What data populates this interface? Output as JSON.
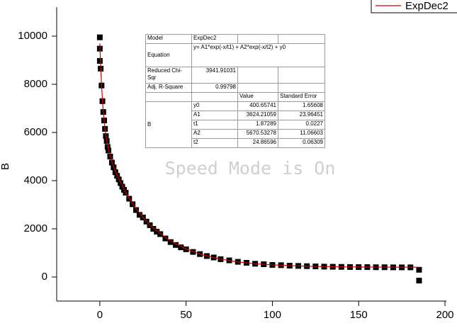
{
  "chart_data": {
    "type": "scatter",
    "ylabel": "B",
    "xlim": [
      -25,
      200
    ],
    "xticks": [
      0,
      50,
      100,
      150,
      200
    ],
    "ylim": [
      -1000,
      11000
    ],
    "yticks": [
      0,
      2000,
      4000,
      6000,
      8000,
      10000
    ],
    "series": [
      {
        "color": "#000000",
        "marker": "square",
        "x": [
          0,
          0,
          0,
          0.5,
          1,
          1.5,
          2,
          2.5,
          3,
          3.5,
          4,
          4.5,
          5,
          6,
          7,
          8,
          9,
          10,
          11,
          12,
          13,
          14,
          15,
          17,
          19,
          21,
          23,
          25,
          27,
          29,
          31,
          33,
          35,
          38,
          41,
          44,
          47,
          50,
          54,
          58,
          62,
          66,
          70,
          75,
          80,
          85,
          90,
          95,
          100,
          105,
          110,
          115,
          120,
          125,
          130,
          135,
          140,
          145,
          150,
          155,
          160,
          165,
          170,
          175,
          180,
          185,
          185
        ],
        "values": [
          9950,
          9480,
          8970,
          8650,
          7950,
          7300,
          6850,
          6500,
          6150,
          5850,
          5650,
          5400,
          5250,
          5000,
          4750,
          4550,
          4350,
          4200,
          4050,
          3900,
          3750,
          3620,
          3500,
          3250,
          3020,
          2780,
          2580,
          2470,
          2300,
          2150,
          2000,
          1880,
          1780,
          1600,
          1450,
          1330,
          1230,
          1150,
          1040,
          950,
          870,
          810,
          740,
          690,
          630,
          590,
          550,
          530,
          500,
          490,
          470,
          460,
          450,
          440,
          430,
          425,
          420,
          415,
          410,
          410,
          405,
          405,
          400,
          400,
          400,
          300,
          -150
        ]
      },
      {
        "name": "ExpDec2",
        "color": "#cc0000",
        "marker": "line",
        "x": [
          0,
          0.5,
          1,
          1.5,
          2,
          3,
          4,
          5,
          7,
          10,
          15,
          20,
          25,
          30,
          40,
          50,
          60,
          70,
          80,
          90,
          100,
          120,
          140,
          160,
          185
        ],
        "values": [
          9695,
          8733,
          7973,
          7366,
          6880,
          6158,
          5657,
          5288,
          4766,
          4211,
          3503,
          2938,
          2476,
          2098,
          1536,
          1160,
          908,
          740,
          628,
          553,
          502,
          447,
          421,
          410,
          404
        ]
      }
    ],
    "legend": "top-right",
    "watermark": "Speed Mode is On",
    "fit_table": {
      "summary": [
        [
          "Model",
          "ExpDec2"
        ],
        [
          "Equation",
          "y= A1*exp(-x/t1) + A2*exp(-x/t2) + y0"
        ],
        [
          "Reduced Chi-Sqr",
          "3941.91031"
        ],
        [
          "Adj. R-Square",
          "0.99798"
        ]
      ],
      "columns": [
        "Value",
        "Standard Error"
      ],
      "group": "B",
      "params": [
        [
          "y0",
          "400.65741",
          "1.65608"
        ],
        [
          "A1",
          "3624.21059",
          "23.96451"
        ],
        [
          "t1",
          "1.87289",
          "0.0227"
        ],
        [
          "A2",
          "5670.53278",
          "11.06603"
        ],
        [
          "t2",
          "24.86596",
          "0.06309"
        ]
      ]
    }
  }
}
